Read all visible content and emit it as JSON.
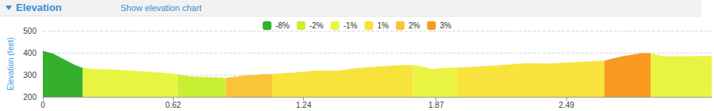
{
  "chart_data": {
    "type": "area",
    "title": "Elevation",
    "subtitle": "Show elevation chart",
    "y_label": "Elevation (feet)",
    "legend": "top",
    "grid": true,
    "x": [
      0,
      0.05,
      0.1,
      0.15,
      0.19,
      0.25,
      0.35,
      0.45,
      0.55,
      0.64,
      0.7,
      0.8,
      0.87,
      0.95,
      1.05,
      1.09,
      1.2,
      1.3,
      1.4,
      1.5,
      1.6,
      1.7,
      1.76,
      1.8,
      1.85,
      1.9,
      1.97,
      2.1,
      2.2,
      2.3,
      2.4,
      2.5,
      2.6,
      2.67,
      2.75,
      2.85,
      2.89,
      2.95,
      3.05,
      3.18
    ],
    "xlim": [
      0,
      3.18
    ],
    "xticks": [
      0,
      0.62,
      1.24,
      1.87,
      2.49
    ],
    "ylim": [
      200,
      500
    ],
    "yticks": [
      200,
      300,
      400,
      500
    ],
    "series": [
      {
        "name": "-8%",
        "color": "#34b02c",
        "values": [
          408,
          395,
          370,
          345,
          330,
          null,
          null,
          null,
          null,
          null,
          null,
          null,
          null,
          null,
          null,
          null,
          null,
          null,
          null,
          null,
          null,
          null,
          null,
          null,
          null,
          null,
          null,
          null,
          null,
          null,
          null,
          null,
          null,
          null,
          null,
          null,
          null,
          null,
          null,
          null
        ]
      },
      {
        "name": "-2%",
        "color": "#c9ef35",
        "values": [
          null,
          null,
          null,
          null,
          null,
          null,
          null,
          null,
          null,
          302,
          292,
          288,
          285,
          null,
          null,
          null,
          null,
          null,
          null,
          null,
          null,
          null,
          null,
          null,
          null,
          null,
          null,
          null,
          null,
          null,
          null,
          null,
          null,
          null,
          null,
          null,
          null,
          null,
          null,
          null
        ]
      },
      {
        "name": "-1%",
        "color": "#e9f442",
        "values": [
          null,
          null,
          null,
          null,
          330,
          325,
          322,
          316,
          310,
          302,
          null,
          null,
          null,
          null,
          null,
          null,
          null,
          null,
          null,
          null,
          null,
          null,
          343,
          338,
          325,
          330,
          332,
          null,
          null,
          null,
          null,
          null,
          null,
          null,
          null,
          null,
          397,
          383,
          383,
          385
        ]
      },
      {
        "name": "1%",
        "color": "#f8e23c",
        "values": [
          null,
          null,
          null,
          null,
          null,
          null,
          null,
          null,
          null,
          null,
          null,
          null,
          null,
          null,
          null,
          303,
          310,
          318,
          318,
          330,
          337,
          343,
          343,
          null,
          null,
          null,
          332,
          338,
          345,
          352,
          350,
          355,
          360,
          363,
          null,
          null,
          null,
          null,
          null,
          null
        ]
      },
      {
        "name": "2%",
        "color": "#f9c43a",
        "values": [
          null,
          null,
          null,
          null,
          null,
          null,
          null,
          null,
          null,
          null,
          null,
          null,
          285,
          295,
          302,
          303,
          null,
          null,
          null,
          null,
          null,
          null,
          null,
          null,
          null,
          null,
          null,
          null,
          null,
          null,
          null,
          null,
          null,
          null,
          null,
          null,
          null,
          null,
          null,
          null
        ]
      },
      {
        "name": "3%",
        "color": "#f79a1f",
        "values": [
          null,
          null,
          null,
          null,
          null,
          null,
          null,
          null,
          null,
          null,
          null,
          null,
          null,
          null,
          null,
          null,
          null,
          null,
          null,
          null,
          null,
          null,
          null,
          null,
          null,
          null,
          null,
          null,
          null,
          null,
          null,
          null,
          null,
          363,
          382,
          398,
          397,
          null,
          null,
          null
        ]
      }
    ]
  }
}
